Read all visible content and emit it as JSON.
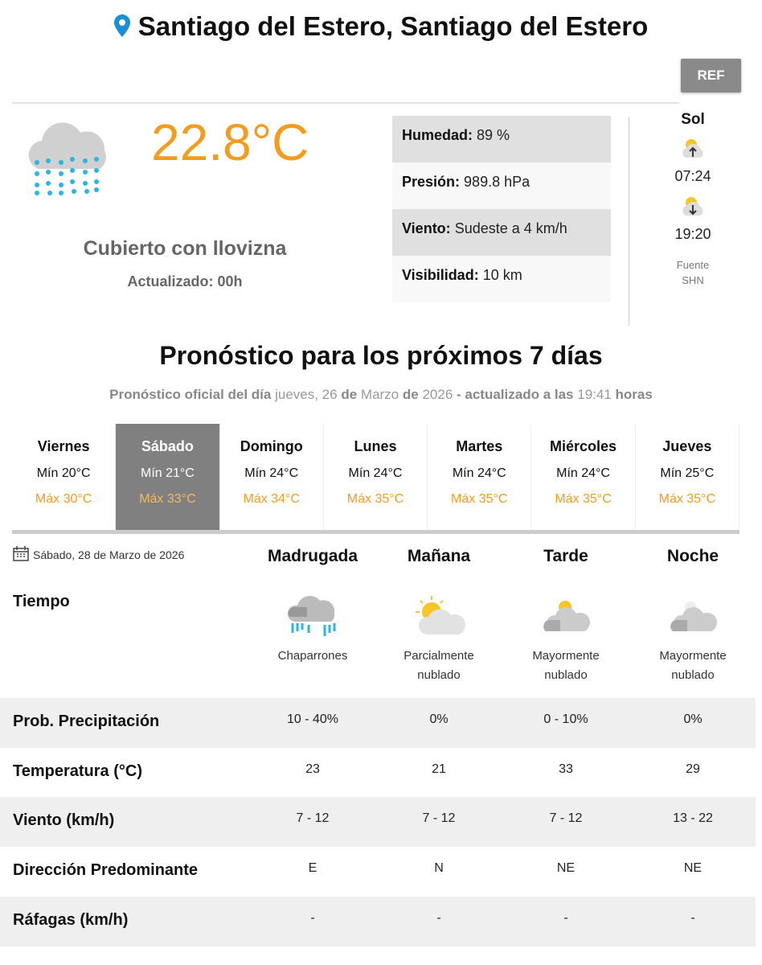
{
  "location": {
    "title": "Santiago del Estero, Santiago del Estero",
    "icon": "map-pin-icon"
  },
  "ref_label": "REF",
  "current": {
    "icon": "drizzle-cloud-icon",
    "temperature": "22.8°C",
    "description": "Cubierto con llovizna",
    "updated": "Actualizado: 00h",
    "details": [
      {
        "label": "Humedad:",
        "value": "89 %"
      },
      {
        "label": "Presión:",
        "value": "989.8 hPa"
      },
      {
        "label": "Viento:",
        "value": "Sudeste a 4 km/h"
      },
      {
        "label": "Visibilidad:",
        "value": "10 km"
      }
    ]
  },
  "sun": {
    "title": "Sol",
    "sunrise": "07:24",
    "sunset": "19:20",
    "source_label": "Fuente",
    "source": "SHN"
  },
  "forecast": {
    "title": "Pronóstico para los próximos 7 días",
    "subtitle": {
      "p1": "Pronóstico oficial del día",
      "day": "jueves, 26",
      "p2": "de",
      "month": "Marzo",
      "p3": "de",
      "year": "2026",
      "p4": "- actualizado a las",
      "time": "19:41",
      "p5": "horas"
    },
    "days": [
      {
        "name": "Viernes",
        "min": "Mín 20°C",
        "max": "Máx 30°C"
      },
      {
        "name": "Sábado",
        "min": "Mín 21°C",
        "max": "Máx 33°C",
        "selected": true
      },
      {
        "name": "Domingo",
        "min": "Mín 24°C",
        "max": "Máx 34°C"
      },
      {
        "name": "Lunes",
        "min": "Mín 24°C",
        "max": "Máx 35°C"
      },
      {
        "name": "Martes",
        "min": "Mín 24°C",
        "max": "Máx 35°C"
      },
      {
        "name": "Miércoles",
        "min": "Mín 24°C",
        "max": "Máx 35°C"
      },
      {
        "name": "Jueves",
        "min": "Mín 25°C",
        "max": "Máx 35°C"
      }
    ]
  },
  "detail": {
    "date": "Sábado, 28 de Marzo de 2026",
    "periods": [
      "Madrugada",
      "Mañana",
      "Tarde",
      "Noche"
    ],
    "tiempo_label": "Tiempo",
    "weather": [
      {
        "icon": "showers-icon",
        "l1": "Chaparrones",
        "l2": ""
      },
      {
        "icon": "partly-cloudy-icon",
        "l1": "Parcialmente",
        "l2": "nublado"
      },
      {
        "icon": "mostly-cloudy-day-icon",
        "l1": "Mayormente",
        "l2": "nublado"
      },
      {
        "icon": "mostly-cloudy-night-icon",
        "l1": "Mayormente",
        "l2": "nublado"
      }
    ],
    "rows": [
      {
        "label": "Prob. Precipitación",
        "values": [
          "10 - 40%",
          "0%",
          "0 - 10%",
          "0%"
        ]
      },
      {
        "label": "Temperatura (°C)",
        "values": [
          "23",
          "21",
          "33",
          "29"
        ]
      },
      {
        "label": "Viento (km/h)",
        "values": [
          "7 - 12",
          "7 - 12",
          "7 - 12",
          "13 - 22"
        ]
      },
      {
        "label": "Dirección Predominante",
        "values": [
          "E",
          "N",
          "NE",
          "NE"
        ]
      },
      {
        "label": "Ráfagas (km/h)",
        "values": [
          "-",
          "-",
          "-",
          "-"
        ]
      }
    ]
  },
  "colors": {
    "accent": "#f39c1f",
    "pin": "#1a8fd6",
    "selected_day": "#808080"
  }
}
